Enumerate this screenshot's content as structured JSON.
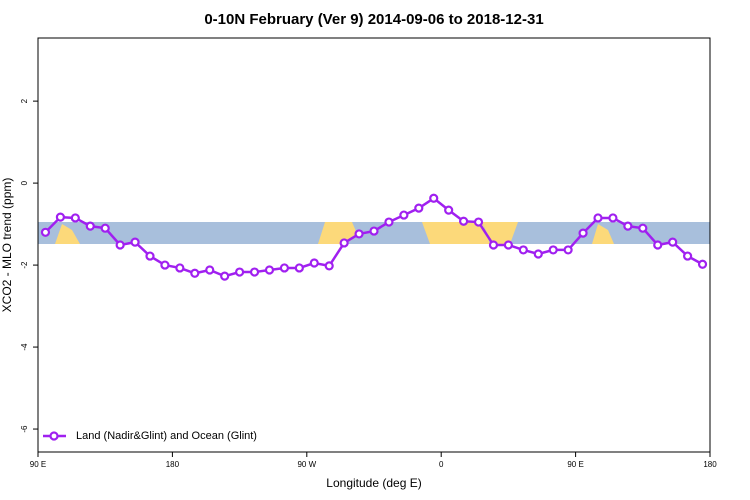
{
  "chart_data": {
    "type": "line",
    "title": "0-10N February (Ver 9)   2014-09-06 to 2018-12-31",
    "x_label": "Longitude (deg E)",
    "y_label": "XCO2 - MLO trend (ppm)",
    "x": [
      95,
      105,
      115,
      125,
      135,
      145,
      155,
      165,
      175,
      185,
      195,
      205,
      215,
      225,
      235,
      245,
      255,
      265,
      275,
      285,
      295,
      305,
      315,
      325,
      335,
      345,
      355,
      365,
      375,
      385,
      395,
      405,
      415,
      425,
      435,
      445,
      455,
      465,
      475,
      485,
      495,
      505,
      515,
      525,
      535
    ],
    "series": [
      {
        "name": "Land (Nadir&Glint) and Ocean (Glint)",
        "color": "#a020f0",
        "values": [
          -1.2,
          -0.83,
          -0.85,
          -1.05,
          -1.1,
          -1.51,
          -1.44,
          -1.78,
          -2.0,
          -2.07,
          -2.2,
          -2.12,
          -2.27,
          -2.17,
          -2.17,
          -2.12,
          -2.07,
          -2.07,
          -1.95,
          -2.02,
          -1.46,
          -1.24,
          -1.17,
          -0.95,
          -0.78,
          -0.61,
          -0.37,
          -0.66,
          -0.93,
          -0.95,
          -1.51,
          -1.51,
          -1.63,
          -1.73,
          -1.63,
          -1.63,
          -1.22,
          -0.85,
          -0.85,
          -1.05,
          -1.1,
          -1.51,
          -1.44,
          -1.78,
          -1.98
        ]
      }
    ],
    "xlim": [
      90,
      540
    ],
    "xticks": [
      {
        "value": 90,
        "label": "90 E"
      },
      180,
      {
        "value": 270,
        "label": "90 W"
      },
      {
        "value": 360,
        "label": "0"
      },
      {
        "value": 450,
        "label": "90 E"
      },
      {
        "value": 540,
        "label": "180"
      }
    ],
    "ylim": [
      -6.56,
      3.54
    ],
    "yticks": [
      -6,
      -4,
      -2,
      0,
      2
    ],
    "legend": "bottom-left"
  }
}
